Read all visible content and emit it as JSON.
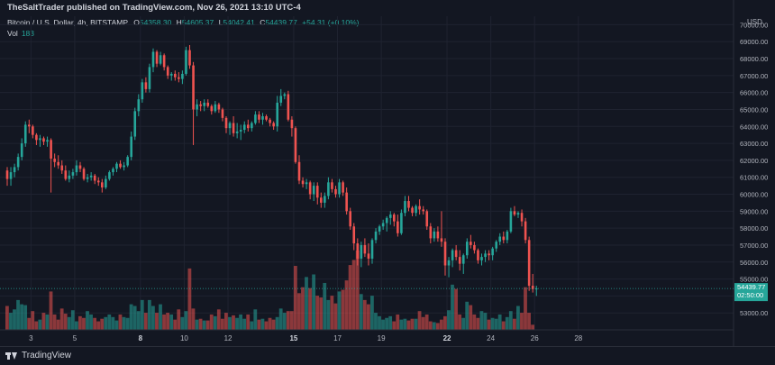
{
  "header": {
    "publisher": "TheSaltTrader published on TradingView.com, Nov 26, 2021 13:10 UTC-4",
    "symbol": "Bitcoin / U.S. Dollar, 4h, BITSTAMP",
    "ohlc": {
      "o_label": "O",
      "o": "54358.30",
      "h_label": "H",
      "h": "54605.37",
      "l_label": "L",
      "l": "54042.41",
      "c_label": "C",
      "c": "54439.77",
      "change": "+54.31 (+0.10%)"
    },
    "vol_label": "Vol",
    "vol_value": "183",
    "currency": "USD"
  },
  "price_tag": {
    "price": "54439.77",
    "countdown": "02:50:00"
  },
  "footer": {
    "brand": "TradingView"
  },
  "colors": {
    "up": "#26a69a",
    "down": "#ef5350",
    "background": "#131722",
    "grid": "#1f2330",
    "text": "#d1d4dc"
  },
  "chart_data": {
    "type": "candlestick",
    "interval": "4h",
    "ylim": [
      52000,
      70500
    ],
    "y_ticks": [
      "70000.00",
      "69000.00",
      "68000.00",
      "67000.00",
      "66000.00",
      "65000.00",
      "64000.00",
      "63000.00",
      "62000.00",
      "61000.00",
      "60000.00",
      "59000.00",
      "58000.00",
      "57000.00",
      "56000.00",
      "55000.00",
      "54000.00",
      "53000.00"
    ],
    "x_ticks": [
      {
        "label": "3",
        "bar": 6.5
      },
      {
        "label": "5",
        "bar": 18.5
      },
      {
        "label": "8",
        "bar": 36.5
      },
      {
        "label": "10",
        "bar": 48.5
      },
      {
        "label": "12",
        "bar": 60.5
      },
      {
        "label": "15",
        "bar": 78.5
      },
      {
        "label": "17",
        "bar": 90.5
      },
      {
        "label": "19",
        "bar": 102.5
      },
      {
        "label": "22",
        "bar": 120.5
      },
      {
        "label": "24",
        "bar": 132.5
      },
      {
        "label": "26",
        "bar": 144.5
      },
      {
        "label": "28",
        "bar": 156.5
      }
    ],
    "x_ticks_bold": [
      "8",
      "15",
      "22"
    ],
    "candles": [
      [
        61400,
        61600,
        60500,
        60900
      ],
      [
        60900,
        61600,
        60500,
        61300
      ],
      [
        61300,
        61800,
        61000,
        61600
      ],
      [
        61600,
        62400,
        61400,
        62200
      ],
      [
        62200,
        63300,
        62000,
        63000
      ],
      [
        63000,
        64300,
        62800,
        64100
      ],
      [
        64100,
        64400,
        63600,
        64000
      ],
      [
        64000,
        64100,
        63300,
        63500
      ],
      [
        63500,
        63600,
        62900,
        63200
      ],
      [
        63200,
        63500,
        62800,
        63300
      ],
      [
        63300,
        63400,
        62900,
        63100
      ],
      [
        63100,
        63400,
        62800,
        63200
      ],
      [
        63200,
        63300,
        60100,
        62100
      ],
      [
        62100,
        62400,
        61600,
        61900
      ],
      [
        61900,
        62300,
        61500,
        61700
      ],
      [
        61700,
        62000,
        61200,
        61400
      ],
      [
        61400,
        61700,
        60800,
        60900
      ],
      [
        60900,
        61400,
        60700,
        61100
      ],
      [
        61100,
        61500,
        60900,
        61300
      ],
      [
        61300,
        62000,
        61100,
        61700
      ],
      [
        61700,
        61900,
        61300,
        61500
      ],
      [
        61500,
        61600,
        60800,
        60900
      ],
      [
        60900,
        61200,
        60700,
        61000
      ],
      [
        61000,
        61300,
        60800,
        61100
      ],
      [
        61100,
        61200,
        60600,
        60800
      ],
      [
        60800,
        61000,
        60500,
        60700
      ],
      [
        60700,
        60900,
        60100,
        60400
      ],
      [
        60400,
        61100,
        60300,
        60900
      ],
      [
        60900,
        61400,
        60800,
        61300
      ],
      [
        61300,
        61600,
        61100,
        61500
      ],
      [
        61500,
        61900,
        61300,
        61800
      ],
      [
        61800,
        62000,
        61500,
        61600
      ],
      [
        61600,
        61900,
        61400,
        61700
      ],
      [
        61700,
        62300,
        61600,
        62200
      ],
      [
        62200,
        63700,
        62000,
        63400
      ],
      [
        63400,
        65100,
        63200,
        64900
      ],
      [
        64900,
        65900,
        64600,
        65600
      ],
      [
        65600,
        66800,
        65400,
        66600
      ],
      [
        66600,
        66900,
        66000,
        66200
      ],
      [
        66200,
        67700,
        66000,
        67500
      ],
      [
        67500,
        68600,
        67200,
        68400
      ],
      [
        68400,
        68500,
        67500,
        67700
      ],
      [
        67700,
        68400,
        67600,
        68200
      ],
      [
        68200,
        68300,
        67300,
        67500
      ],
      [
        67500,
        67600,
        66800,
        67000
      ],
      [
        67000,
        67200,
        66700,
        67100
      ],
      [
        67100,
        67300,
        66700,
        66900
      ],
      [
        66900,
        67200,
        66600,
        66800
      ],
      [
        66800,
        67300,
        66500,
        67100
      ],
      [
        67100,
        68700,
        67000,
        68500
      ],
      [
        68500,
        68800,
        67400,
        67600
      ],
      [
        67600,
        67800,
        62900,
        65000
      ],
      [
        65000,
        65600,
        64600,
        65300
      ],
      [
        65300,
        65500,
        64900,
        65200
      ],
      [
        65200,
        65600,
        64900,
        65400
      ],
      [
        65400,
        65600,
        65100,
        65200
      ],
      [
        65200,
        65300,
        64700,
        64900
      ],
      [
        64900,
        65500,
        64800,
        65300
      ],
      [
        65300,
        65400,
        64800,
        65000
      ],
      [
        65000,
        65100,
        64300,
        64500
      ],
      [
        64500,
        64600,
        63600,
        63900
      ],
      [
        63900,
        64300,
        63500,
        64200
      ],
      [
        64200,
        64600,
        63400,
        63600
      ],
      [
        63600,
        64200,
        63300,
        63700
      ],
      [
        63700,
        64100,
        63200,
        63800
      ],
      [
        63800,
        64300,
        63600,
        64100
      ],
      [
        64100,
        64400,
        63700,
        63900
      ],
      [
        63900,
        64300,
        63700,
        64200
      ],
      [
        64200,
        64900,
        64100,
        64700
      ],
      [
        64700,
        64900,
        64200,
        64400
      ],
      [
        64400,
        64800,
        64100,
        64600
      ],
      [
        64600,
        64700,
        64300,
        64400
      ],
      [
        64400,
        64500,
        64000,
        64200
      ],
      [
        64200,
        64300,
        63800,
        64000
      ],
      [
        64000,
        65800,
        63700,
        65400
      ],
      [
        65400,
        66200,
        65200,
        65800
      ],
      [
        65800,
        66000,
        65600,
        65900
      ],
      [
        65900,
        66100,
        64300,
        64400
      ],
      [
        64400,
        64600,
        63400,
        63900
      ],
      [
        63900,
        64000,
        61800,
        61900
      ],
      [
        61900,
        62300,
        60600,
        60800
      ],
      [
        60800,
        61000,
        60400,
        60600
      ],
      [
        60600,
        60900,
        60300,
        60700
      ],
      [
        60700,
        60800,
        59700,
        60000
      ],
      [
        60000,
        60700,
        59600,
        60500
      ],
      [
        60500,
        60700,
        59400,
        59800
      ],
      [
        59800,
        60100,
        59200,
        59500
      ],
      [
        59500,
        60100,
        59200,
        59900
      ],
      [
        59900,
        61000,
        59700,
        60700
      ],
      [
        60700,
        60900,
        60100,
        60300
      ],
      [
        60300,
        60500,
        59800,
        60000
      ],
      [
        60000,
        60900,
        59800,
        60700
      ],
      [
        60700,
        60800,
        59900,
        60100
      ],
      [
        60100,
        60400,
        58800,
        59000
      ],
      [
        59000,
        59200,
        57900,
        58100
      ],
      [
        58100,
        58300,
        56700,
        57100
      ],
      [
        57100,
        57400,
        55800,
        56200
      ],
      [
        56200,
        57200,
        55700,
        57000
      ],
      [
        57000,
        57400,
        56300,
        56500
      ],
      [
        56500,
        57100,
        55800,
        56200
      ],
      [
        56200,
        57400,
        55900,
        57300
      ],
      [
        57300,
        58000,
        57100,
        57800
      ],
      [
        57800,
        58200,
        57600,
        58100
      ],
      [
        58100,
        58500,
        57900,
        58300
      ],
      [
        58300,
        58700,
        57800,
        58600
      ],
      [
        58600,
        59000,
        58200,
        58800
      ],
      [
        58800,
        58900,
        58100,
        58400
      ],
      [
        58400,
        58800,
        57500,
        57700
      ],
      [
        57700,
        59100,
        57600,
        58900
      ],
      [
        58900,
        59900,
        58700,
        59600
      ],
      [
        59600,
        59900,
        59000,
        59200
      ],
      [
        59200,
        59300,
        58700,
        58900
      ],
      [
        58900,
        59400,
        58700,
        59300
      ],
      [
        59300,
        59700,
        58800,
        59100
      ],
      [
        59100,
        59300,
        58800,
        59000
      ],
      [
        59000,
        59100,
        57900,
        58100
      ],
      [
        58100,
        58300,
        57100,
        57400
      ],
      [
        57400,
        58000,
        57200,
        57800
      ],
      [
        57800,
        58100,
        57200,
        57400
      ],
      [
        57400,
        59000,
        56900,
        57200
      ],
      [
        57200,
        57400,
        55200,
        55800
      ],
      [
        55800,
        56300,
        55100,
        56100
      ],
      [
        56100,
        56800,
        55700,
        56700
      ],
      [
        56700,
        57000,
        56100,
        56300
      ],
      [
        56300,
        56700,
        55500,
        55900
      ],
      [
        55900,
        56500,
        55300,
        56400
      ],
      [
        56400,
        57400,
        56200,
        57200
      ],
      [
        57200,
        57600,
        56800,
        57000
      ],
      [
        57000,
        57200,
        56500,
        56700
      ],
      [
        56700,
        56800,
        55900,
        56100
      ],
      [
        56100,
        56500,
        55800,
        56300
      ],
      [
        56300,
        56700,
        56000,
        56500
      ],
      [
        56500,
        56700,
        56100,
        56400
      ],
      [
        56400,
        56900,
        56100,
        56800
      ],
      [
        56800,
        57300,
        56600,
        57200
      ],
      [
        57200,
        57700,
        57000,
        57500
      ],
      [
        57500,
        57800,
        57100,
        57300
      ],
      [
        57300,
        57900,
        57100,
        57800
      ],
      [
        57800,
        59200,
        57700,
        59000
      ],
      [
        59000,
        59300,
        58700,
        58800
      ],
      [
        58800,
        59000,
        58600,
        58900
      ],
      [
        58900,
        59100,
        58100,
        58400
      ],
      [
        58400,
        58600,
        57100,
        57300
      ],
      [
        57300,
        57500,
        54300,
        54600
      ],
      [
        54600,
        55300,
        54200,
        54400
      ],
      [
        54400,
        54600,
        54000,
        54440
      ]
    ],
    "volume": [
      28,
      20,
      24,
      35,
      30,
      29,
      14,
      22,
      10,
      12,
      20,
      18,
      45,
      18,
      12,
      25,
      19,
      15,
      23,
      10,
      16,
      14,
      22,
      18,
      14,
      10,
      13,
      15,
      18,
      15,
      11,
      18,
      15,
      14,
      30,
      28,
      22,
      35,
      20,
      35,
      28,
      20,
      30,
      18,
      20,
      18,
      12,
      24,
      15,
      22,
      72,
      25,
      12,
      13,
      11,
      11,
      18,
      16,
      24,
      13,
      20,
      15,
      17,
      14,
      18,
      13,
      18,
      10,
      24,
      12,
      13,
      10,
      14,
      12,
      15,
      25,
      20,
      22,
      22,
      75,
      43,
      50,
      62,
      49,
      65,
      40,
      38,
      55,
      35,
      40,
      31,
      45,
      47,
      58,
      76,
      82,
      93,
      42,
      35,
      30,
      40,
      20,
      16,
      12,
      14,
      16,
      10,
      18,
      12,
      13,
      11,
      13,
      13,
      22,
      15,
      18,
      10,
      9,
      8,
      12,
      16,
      23,
      53,
      48,
      18,
      14,
      33,
      29,
      18,
      14,
      22,
      20,
      12,
      14,
      13,
      18,
      10,
      15,
      22,
      13,
      28,
      20,
      50,
      20,
      6
    ]
  }
}
